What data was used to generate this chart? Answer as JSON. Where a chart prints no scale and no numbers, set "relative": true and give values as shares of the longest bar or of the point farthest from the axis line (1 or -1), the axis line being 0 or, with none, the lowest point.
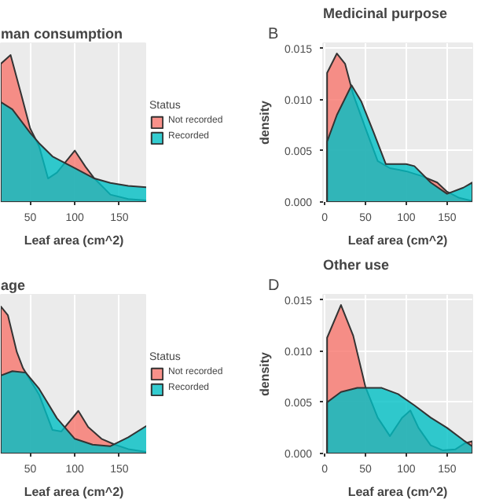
{
  "chart_data": [
    {
      "type": "area",
      "title": "man consumption",
      "xlabel": "Leaf area (cm^2)",
      "relative": true,
      "xlim": [
        17,
        181
      ],
      "xticks": [
        50,
        100,
        150
      ],
      "grid": true,
      "legend": "right",
      "legend_title": "Status",
      "series": [
        {
          "name": "Not recorded",
          "color": "#f8766d",
          "x": [
            17,
            28,
            40,
            50,
            60,
            70,
            80,
            100,
            112,
            122,
            140,
            160,
            181
          ],
          "values": [
            0.94,
            1.0,
            0.73,
            0.5,
            0.38,
            0.16,
            0.2,
            0.35,
            0.24,
            0.16,
            0.05,
            0.02,
            0.01
          ]
        },
        {
          "name": "Recorded",
          "color": "#00bfc4",
          "x": [
            17,
            30,
            40,
            50,
            60,
            75,
            100,
            122,
            140,
            160,
            181
          ],
          "values": [
            0.68,
            0.63,
            0.55,
            0.47,
            0.4,
            0.31,
            0.23,
            0.16,
            0.13,
            0.11,
            0.1
          ]
        }
      ]
    },
    {
      "type": "area",
      "title": "Medicinal purpose",
      "annotations": [
        "B"
      ],
      "xlabel": "Leaf area (cm^2)",
      "ylabel": "density",
      "xlim": [
        -2,
        181
      ],
      "xticks": [
        0,
        50,
        100,
        150
      ],
      "ylim": [
        0,
        0.0155
      ],
      "yticks": [
        {
          "value": 0,
          "label": "0.000"
        },
        {
          "value": 0.005,
          "label": "0.005"
        },
        {
          "value": 0.01,
          "label": "0.010"
        },
        {
          "value": 0.015,
          "label": "0.015"
        }
      ],
      "grid": true,
      "series": [
        {
          "color": "#f8766d",
          "x": [
            3,
            15,
            25,
            35,
            50,
            65,
            80,
            100,
            120,
            138,
            150,
            165,
            181
          ],
          "values": [
            0.0126,
            0.0145,
            0.0135,
            0.0105,
            0.0072,
            0.004,
            0.0033,
            0.003,
            0.0025,
            0.0019,
            0.001,
            0.0004,
            0.0001
          ]
        },
        {
          "color": "#00bfc4",
          "x": [
            3,
            15,
            33,
            45,
            60,
            75,
            100,
            110,
            130,
            150,
            170,
            181
          ],
          "values": [
            0.0059,
            0.0085,
            0.0114,
            0.0098,
            0.0068,
            0.0037,
            0.0037,
            0.0035,
            0.0019,
            0.0008,
            0.0014,
            0.0019
          ]
        }
      ]
    },
    {
      "type": "area",
      "title": "age",
      "xlabel": "Leaf area (cm^2)",
      "relative": true,
      "xlim": [
        17,
        181
      ],
      "xticks": [
        50,
        100,
        150
      ],
      "grid": true,
      "legend": "right",
      "legend_title": "Status",
      "series": [
        {
          "name": "Not recorded",
          "color": "#f8766d",
          "x": [
            17,
            25,
            35,
            42,
            45,
            60,
            75,
            85,
            104,
            115,
            130,
            145,
            160,
            181
          ],
          "values": [
            1.0,
            0.94,
            0.69,
            0.58,
            0.55,
            0.4,
            0.16,
            0.15,
            0.29,
            0.18,
            0.1,
            0.06,
            0.03,
            0.01
          ]
        },
        {
          "name": "Recorded",
          "color": "#00bfc4",
          "x": [
            17,
            30,
            45,
            60,
            80,
            100,
            120,
            140,
            160,
            181
          ],
          "values": [
            0.53,
            0.56,
            0.55,
            0.44,
            0.24,
            0.1,
            0.06,
            0.05,
            0.11,
            0.19
          ]
        }
      ]
    },
    {
      "type": "area",
      "title": "Other use",
      "annotations": [
        "D"
      ],
      "xlabel": "Leaf area (cm^2)",
      "ylabel": "density",
      "xlim": [
        -2,
        181
      ],
      "xticks": [
        0,
        50,
        100,
        150
      ],
      "ylim": [
        0,
        0.0155
      ],
      "yticks": [
        {
          "value": 0,
          "label": "0.000"
        },
        {
          "value": 0.005,
          "label": "0.005"
        },
        {
          "value": 0.01,
          "label": "0.010"
        },
        {
          "value": 0.015,
          "label": "0.015"
        }
      ],
      "grid": true,
      "series": [
        {
          "color": "#f8766d",
          "x": [
            3,
            20,
            35,
            50,
            65,
            80,
            95,
            105,
            115,
            130,
            145,
            160,
            172,
            181
          ],
          "values": [
            0.0113,
            0.0145,
            0.0115,
            0.0065,
            0.0035,
            0.0017,
            0.0035,
            0.0042,
            0.0025,
            0.0008,
            0.0003,
            0.0004,
            0.001,
            0.0012
          ]
        },
        {
          "color": "#00bfc4",
          "x": [
            3,
            20,
            40,
            70,
            90,
            110,
            130,
            150,
            170,
            181
          ],
          "values": [
            0.005,
            0.006,
            0.0064,
            0.0064,
            0.0058,
            0.0047,
            0.0035,
            0.0025,
            0.0013,
            0.0007
          ]
        }
      ]
    }
  ]
}
